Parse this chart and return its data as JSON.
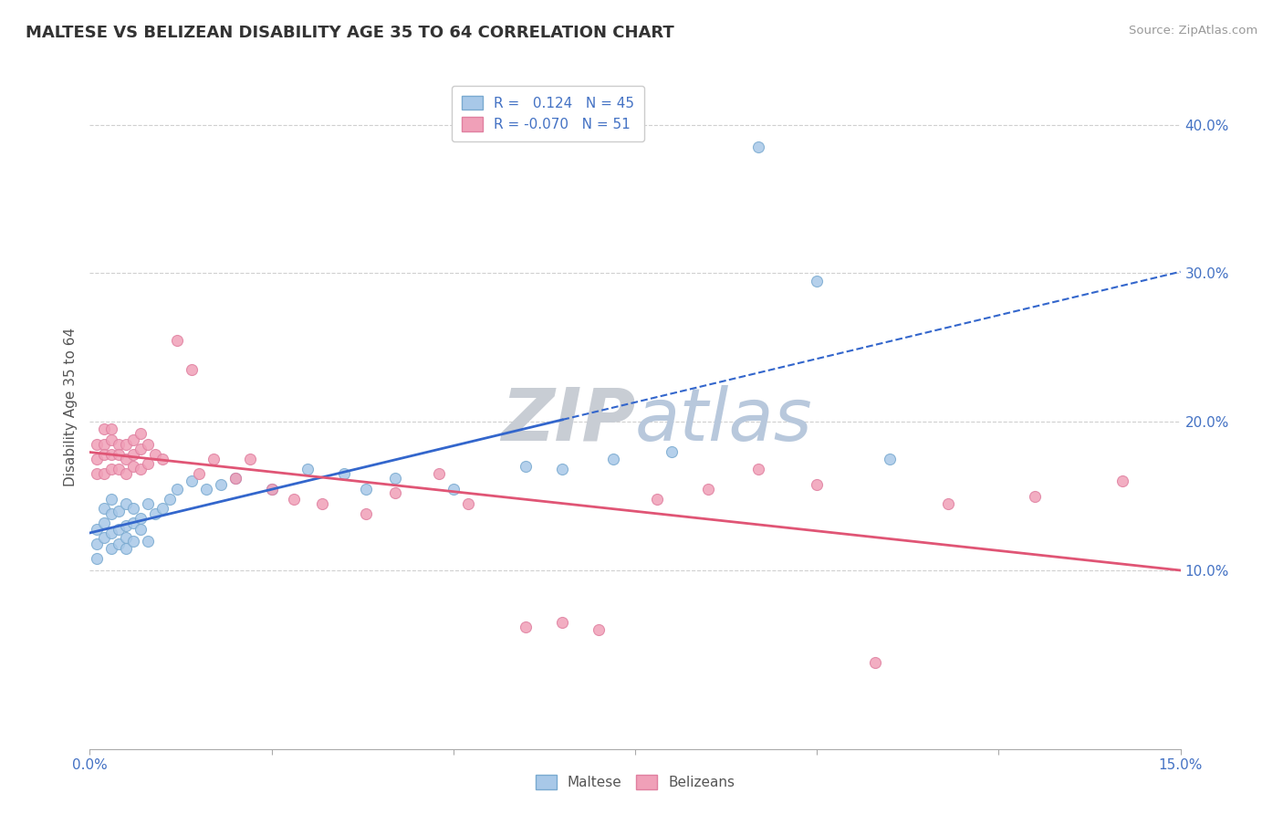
{
  "title": "MALTESE VS BELIZEAN DISABILITY AGE 35 TO 64 CORRELATION CHART",
  "source": "Source: ZipAtlas.com",
  "ylabel": "Disability Age 35 to 64",
  "xlim": [
    0.0,
    0.15
  ],
  "ylim": [
    -0.02,
    0.44
  ],
  "maltese_color": "#a8c8e8",
  "belizean_color": "#f0a0b8",
  "maltese_line_color": "#3366cc",
  "belizean_line_color": "#e05575",
  "maltese_color_edge": "#7aaad0",
  "belizean_color_edge": "#e080a0",
  "maltese_x": [
    0.001,
    0.001,
    0.001,
    0.002,
    0.002,
    0.002,
    0.003,
    0.003,
    0.003,
    0.003,
    0.004,
    0.004,
    0.004,
    0.005,
    0.005,
    0.005,
    0.005,
    0.006,
    0.006,
    0.006,
    0.007,
    0.007,
    0.008,
    0.008,
    0.009,
    0.01,
    0.011,
    0.012,
    0.014,
    0.016,
    0.018,
    0.02,
    0.025,
    0.03,
    0.035,
    0.038,
    0.042,
    0.05,
    0.06,
    0.065,
    0.072,
    0.08,
    0.092,
    0.1,
    0.11
  ],
  "maltese_y": [
    0.128,
    0.118,
    0.108,
    0.132,
    0.142,
    0.122,
    0.125,
    0.138,
    0.148,
    0.115,
    0.128,
    0.118,
    0.14,
    0.13,
    0.122,
    0.115,
    0.145,
    0.132,
    0.142,
    0.12,
    0.135,
    0.128,
    0.145,
    0.12,
    0.138,
    0.142,
    0.148,
    0.155,
    0.16,
    0.155,
    0.158,
    0.162,
    0.155,
    0.168,
    0.165,
    0.155,
    0.162,
    0.155,
    0.17,
    0.168,
    0.175,
    0.18,
    0.385,
    0.295,
    0.175
  ],
  "belizean_x": [
    0.001,
    0.001,
    0.001,
    0.002,
    0.002,
    0.002,
    0.002,
    0.003,
    0.003,
    0.003,
    0.003,
    0.004,
    0.004,
    0.004,
    0.005,
    0.005,
    0.005,
    0.006,
    0.006,
    0.006,
    0.007,
    0.007,
    0.007,
    0.008,
    0.008,
    0.009,
    0.01,
    0.012,
    0.014,
    0.015,
    0.017,
    0.02,
    0.022,
    0.025,
    0.028,
    0.032,
    0.038,
    0.042,
    0.048,
    0.052,
    0.06,
    0.065,
    0.07,
    0.078,
    0.085,
    0.092,
    0.1,
    0.108,
    0.118,
    0.13,
    0.142
  ],
  "belizean_y": [
    0.185,
    0.175,
    0.165,
    0.195,
    0.185,
    0.178,
    0.165,
    0.188,
    0.178,
    0.195,
    0.168,
    0.185,
    0.178,
    0.168,
    0.175,
    0.185,
    0.165,
    0.178,
    0.188,
    0.17,
    0.182,
    0.168,
    0.192,
    0.172,
    0.185,
    0.178,
    0.175,
    0.255,
    0.235,
    0.165,
    0.175,
    0.162,
    0.175,
    0.155,
    0.148,
    0.145,
    0.138,
    0.152,
    0.165,
    0.145,
    0.062,
    0.065,
    0.06,
    0.148,
    0.155,
    0.168,
    0.158,
    0.038,
    0.145,
    0.15,
    0.16
  ]
}
